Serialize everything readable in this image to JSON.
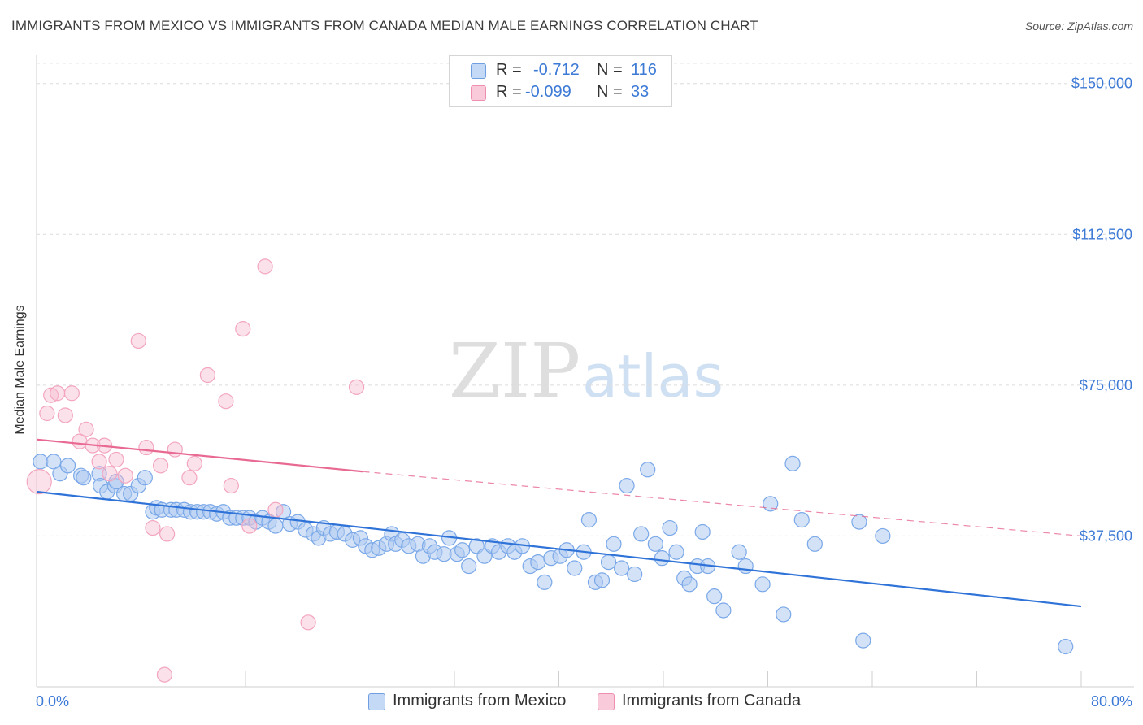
{
  "title": "IMMIGRANTS FROM MEXICO VS IMMIGRANTS FROM CANADA MEDIAN MALE EARNINGS CORRELATION CHART",
  "source": "Source: ZipAtlas.com",
  "watermark": {
    "zip": "ZIP",
    "atlas": "atlas"
  },
  "legend": {
    "rows": [
      {
        "r_label": "R =",
        "r_value": "-0.712",
        "n_label": "N =",
        "n_value": "116",
        "color": "#aecbf0"
      },
      {
        "r_label": "R =",
        "r_value": "-0.099",
        "n_label": "N =",
        "n_value": "33",
        "color": "#f7bdd0"
      }
    ]
  },
  "bottom_legend": [
    {
      "label": "Immigrants from Mexico",
      "color": "#aecbf0"
    },
    {
      "label": "Immigrants from Canada",
      "color": "#f7bdd0"
    }
  ],
  "chart_data": {
    "type": "scatter",
    "title": "IMMIGRANTS FROM MEXICO VS IMMIGRANTS FROM CANADA MEDIAN MALE EARNINGS CORRELATION CHART",
    "xlabel": "",
    "ylabel": "Median Male Earnings",
    "xlim": [
      0,
      80
    ],
    "ylim": [
      0,
      155000
    ],
    "x_tick_labels": [
      "0.0%",
      "80.0%"
    ],
    "y_ticks": [
      37500,
      75000,
      112500,
      150000
    ],
    "y_tick_labels": [
      "$37,500",
      "$75,000",
      "$112,500",
      "$150,000"
    ],
    "grid": true,
    "legend_placement": "top-center",
    "series": [
      {
        "name": "Immigrants from Mexico",
        "color": "#7aa8e8",
        "trend_color": "#2f73d8",
        "trend": {
          "x": [
            0,
            80
          ],
          "y": [
            48500,
            20000
          ]
        },
        "points": [
          [
            0.3,
            56000
          ],
          [
            1.3,
            56000
          ],
          [
            1.8,
            53000
          ],
          [
            2.4,
            55000
          ],
          [
            3.4,
            52500
          ],
          [
            3.6,
            52000
          ],
          [
            4.8,
            53000
          ],
          [
            4.9,
            50000
          ],
          [
            5.4,
            48500
          ],
          [
            6.0,
            50000
          ],
          [
            6.1,
            51000
          ],
          [
            6.7,
            48000
          ],
          [
            7.2,
            48000
          ],
          [
            7.8,
            50000
          ],
          [
            8.3,
            52000
          ],
          [
            8.9,
            43500
          ],
          [
            9.2,
            44500
          ],
          [
            9.6,
            44000
          ],
          [
            10.3,
            44000
          ],
          [
            10.7,
            44000
          ],
          [
            11.3,
            44000
          ],
          [
            11.8,
            43500
          ],
          [
            12.3,
            43500
          ],
          [
            12.8,
            43500
          ],
          [
            13.3,
            43500
          ],
          [
            13.8,
            43000
          ],
          [
            14.3,
            43500
          ],
          [
            14.8,
            42000
          ],
          [
            15.3,
            42000
          ],
          [
            15.8,
            42000
          ],
          [
            16.3,
            42000
          ],
          [
            16.8,
            41000
          ],
          [
            17.3,
            42000
          ],
          [
            17.8,
            41000
          ],
          [
            18.3,
            40000
          ],
          [
            18.9,
            43500
          ],
          [
            19.4,
            40500
          ],
          [
            20.0,
            41000
          ],
          [
            20.6,
            39000
          ],
          [
            21.2,
            38000
          ],
          [
            21.6,
            37000
          ],
          [
            22.0,
            39500
          ],
          [
            22.5,
            38000
          ],
          [
            23.0,
            38500
          ],
          [
            23.6,
            38000
          ],
          [
            24.2,
            36500
          ],
          [
            24.8,
            37000
          ],
          [
            25.2,
            35000
          ],
          [
            25.7,
            34000
          ],
          [
            26.2,
            34500
          ],
          [
            26.8,
            35500
          ],
          [
            27.2,
            38000
          ],
          [
            27.5,
            35500
          ],
          [
            28.0,
            36500
          ],
          [
            28.5,
            35000
          ],
          [
            29.2,
            35500
          ],
          [
            29.6,
            32500
          ],
          [
            30.1,
            35000
          ],
          [
            30.5,
            33500
          ],
          [
            31.2,
            33000
          ],
          [
            31.6,
            37000
          ],
          [
            32.2,
            33000
          ],
          [
            32.6,
            34000
          ],
          [
            33.1,
            30000
          ],
          [
            33.7,
            35000
          ],
          [
            34.3,
            32500
          ],
          [
            34.9,
            35000
          ],
          [
            35.4,
            33500
          ],
          [
            36.1,
            35000
          ],
          [
            36.6,
            33500
          ],
          [
            37.2,
            35000
          ],
          [
            37.8,
            30000
          ],
          [
            38.4,
            31000
          ],
          [
            38.9,
            26000
          ],
          [
            39.4,
            32000
          ],
          [
            40.1,
            32500
          ],
          [
            40.6,
            34000
          ],
          [
            41.2,
            29500
          ],
          [
            41.9,
            33500
          ],
          [
            42.3,
            41500
          ],
          [
            42.8,
            26000
          ],
          [
            43.3,
            26500
          ],
          [
            43.8,
            31000
          ],
          [
            44.2,
            35500
          ],
          [
            44.8,
            29500
          ],
          [
            45.2,
            50000
          ],
          [
            45.8,
            28000
          ],
          [
            46.3,
            38000
          ],
          [
            46.8,
            54000
          ],
          [
            47.4,
            35500
          ],
          [
            47.9,
            32000
          ],
          [
            48.5,
            39500
          ],
          [
            49.0,
            33500
          ],
          [
            49.6,
            27000
          ],
          [
            50.0,
            25500
          ],
          [
            50.6,
            30000
          ],
          [
            51.0,
            38500
          ],
          [
            51.4,
            30000
          ],
          [
            51.9,
            22500
          ],
          [
            52.6,
            19000
          ],
          [
            53.8,
            33500
          ],
          [
            54.3,
            30000
          ],
          [
            55.6,
            25500
          ],
          [
            56.2,
            45500
          ],
          [
            57.2,
            18000
          ],
          [
            57.9,
            55500
          ],
          [
            58.6,
            41500
          ],
          [
            59.6,
            35500
          ],
          [
            63.0,
            41000
          ],
          [
            63.3,
            11500
          ],
          [
            64.8,
            37500
          ],
          [
            78.8,
            10000
          ]
        ]
      },
      {
        "name": "Immigrants from Canada",
        "color": "#f3a5bf",
        "trend_color": "#e86a93",
        "trend": {
          "x": [
            0,
            25
          ],
          "y": [
            61500,
            53500
          ]
        },
        "trend_dashed": {
          "x": [
            25,
            80
          ],
          "y": [
            53500,
            37500
          ]
        },
        "points": [
          [
            0.2,
            51000
          ],
          [
            0.8,
            68000
          ],
          [
            1.1,
            72500
          ],
          [
            1.6,
            73000
          ],
          [
            2.2,
            67500
          ],
          [
            2.7,
            73000
          ],
          [
            3.3,
            61000
          ],
          [
            3.8,
            64000
          ],
          [
            4.3,
            60000
          ],
          [
            4.8,
            56000
          ],
          [
            5.2,
            60000
          ],
          [
            5.6,
            53000
          ],
          [
            6.1,
            56500
          ],
          [
            6.8,
            52500
          ],
          [
            7.8,
            86000
          ],
          [
            8.4,
            59500
          ],
          [
            8.9,
            39500
          ],
          [
            9.5,
            55000
          ],
          [
            10.0,
            38000
          ],
          [
            10.6,
            59000
          ],
          [
            11.7,
            52000
          ],
          [
            12.1,
            55500
          ],
          [
            13.1,
            77500
          ],
          [
            14.5,
            71000
          ],
          [
            14.9,
            50000
          ],
          [
            15.8,
            89000
          ],
          [
            16.3,
            40000
          ],
          [
            17.5,
            104500
          ],
          [
            18.3,
            44000
          ],
          [
            20.8,
            16000
          ],
          [
            24.5,
            74500
          ],
          [
            9.8,
            3000
          ]
        ]
      }
    ]
  }
}
